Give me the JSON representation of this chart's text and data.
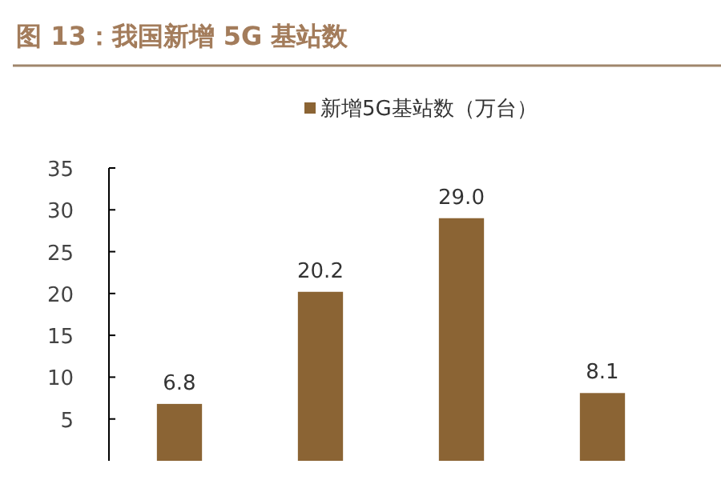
{
  "chart_data": {
    "type": "bar",
    "title": "图 13：我国新增 5G 基站数",
    "categories": [
      null,
      null,
      null,
      null
    ],
    "series": [
      {
        "name": "新增5G基站数（万台）",
        "color": "#8b6434",
        "values": [
          6.8,
          20.2,
          29.0,
          8.1
        ],
        "value_labels": [
          "6.8",
          "20.2",
          "29.0",
          "8.1"
        ]
      }
    ],
    "ylim": [
      0,
      35
    ],
    "yticks": [
      5,
      10,
      15,
      20,
      25,
      30,
      35
    ],
    "legend": "top",
    "tick_labels": "y"
  }
}
